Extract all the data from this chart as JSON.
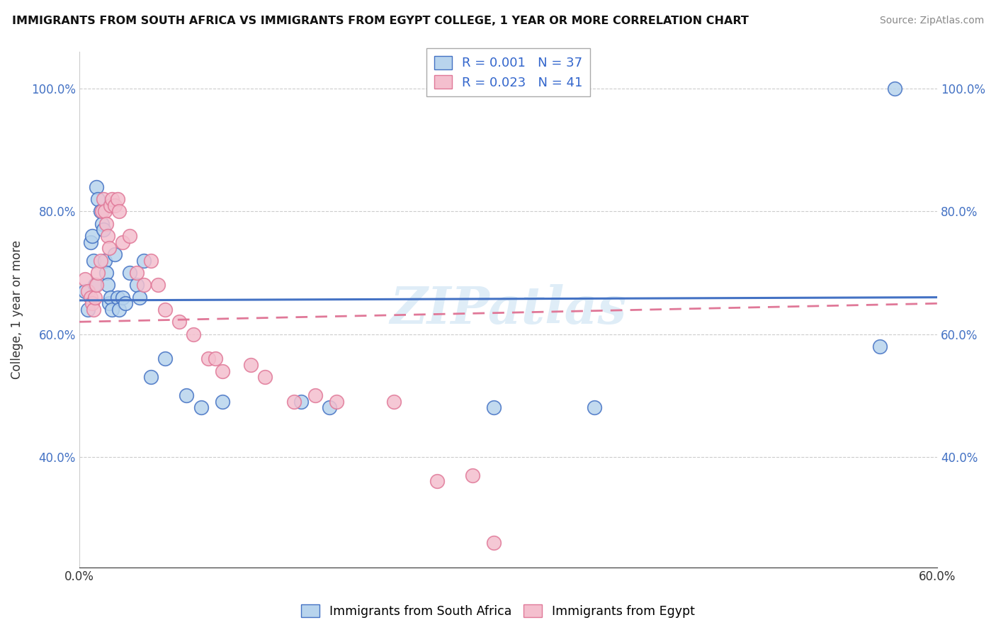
{
  "title": "IMMIGRANTS FROM SOUTH AFRICA VS IMMIGRANTS FROM EGYPT COLLEGE, 1 YEAR OR MORE CORRELATION CHART",
  "source": "Source: ZipAtlas.com",
  "ylabel": "College, 1 year or more",
  "xlim": [
    0.0,
    0.6
  ],
  "ylim": [
    0.22,
    1.06
  ],
  "r_blue": "0.001",
  "n_blue": "37",
  "r_pink": "0.023",
  "n_pink": "41",
  "legend_label_blue": "Immigrants from South Africa",
  "legend_label_pink": "Immigrants from Egypt",
  "blue_fill": "#b8d4ed",
  "pink_fill": "#f4bfce",
  "blue_edge": "#4472c4",
  "pink_edge": "#e07898",
  "blue_line": "#4472c4",
  "pink_line": "#e07898",
  "watermark": "ZIPatlas",
  "blue_x": [
    0.004,
    0.006,
    0.008,
    0.009,
    0.01,
    0.011,
    0.012,
    0.013,
    0.015,
    0.016,
    0.017,
    0.018,
    0.019,
    0.02,
    0.021,
    0.022,
    0.023,
    0.025,
    0.027,
    0.028,
    0.03,
    0.032,
    0.035,
    0.04,
    0.042,
    0.045,
    0.05,
    0.06,
    0.075,
    0.085,
    0.1,
    0.155,
    0.175,
    0.29,
    0.36,
    0.56,
    0.57
  ],
  "blue_y": [
    0.67,
    0.64,
    0.75,
    0.76,
    0.72,
    0.68,
    0.84,
    0.82,
    0.8,
    0.78,
    0.77,
    0.72,
    0.7,
    0.68,
    0.65,
    0.66,
    0.64,
    0.73,
    0.66,
    0.64,
    0.66,
    0.65,
    0.7,
    0.68,
    0.66,
    0.72,
    0.53,
    0.56,
    0.5,
    0.48,
    0.49,
    0.49,
    0.48,
    0.48,
    0.48,
    0.58,
    1.0
  ],
  "pink_x": [
    0.004,
    0.006,
    0.008,
    0.009,
    0.01,
    0.011,
    0.012,
    0.013,
    0.015,
    0.016,
    0.017,
    0.018,
    0.019,
    0.02,
    0.021,
    0.022,
    0.023,
    0.025,
    0.027,
    0.028,
    0.03,
    0.035,
    0.04,
    0.045,
    0.05,
    0.055,
    0.06,
    0.07,
    0.08,
    0.09,
    0.095,
    0.1,
    0.12,
    0.13,
    0.15,
    0.165,
    0.18,
    0.22,
    0.25,
    0.275,
    0.29
  ],
  "pink_y": [
    0.69,
    0.67,
    0.66,
    0.65,
    0.64,
    0.66,
    0.68,
    0.7,
    0.72,
    0.8,
    0.82,
    0.8,
    0.78,
    0.76,
    0.74,
    0.81,
    0.82,
    0.81,
    0.82,
    0.8,
    0.75,
    0.76,
    0.7,
    0.68,
    0.72,
    0.68,
    0.64,
    0.62,
    0.6,
    0.56,
    0.56,
    0.54,
    0.55,
    0.53,
    0.49,
    0.5,
    0.49,
    0.49,
    0.36,
    0.37,
    0.26
  ],
  "blue_line_y0": 0.655,
  "blue_line_y1": 0.66,
  "pink_line_y0": 0.62,
  "pink_line_y1": 0.65,
  "ytick_positions": [
    0.4,
    0.6,
    0.8,
    1.0
  ],
  "ytick_labels_left": [
    "40.0%",
    "60.0%",
    "80.0%",
    "100.0%"
  ],
  "ytick_labels_right": [
    "40.0%",
    "60.0%",
    "80.0%",
    "100.0%"
  ],
  "xtick_positions": [
    0.0,
    0.1,
    0.2,
    0.3,
    0.4,
    0.5,
    0.6
  ],
  "xtick_labels": [
    "0.0%",
    "",
    "",
    "",
    "",
    "",
    "60.0%"
  ]
}
